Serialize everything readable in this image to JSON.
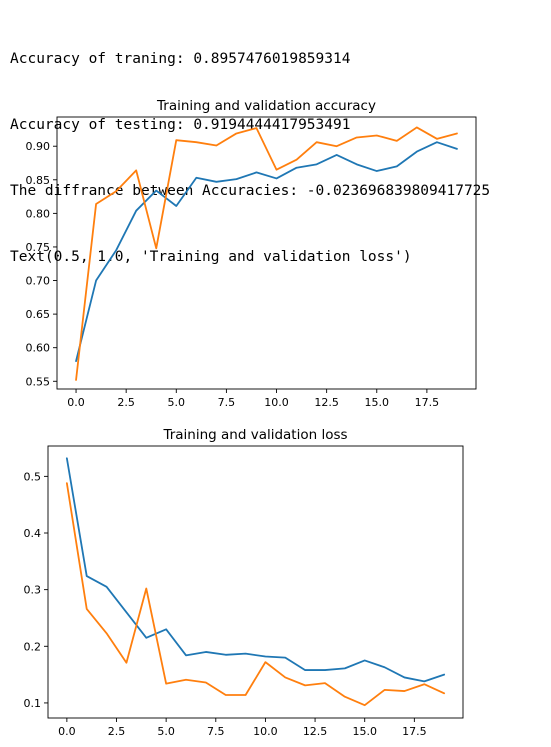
{
  "output_lines": [
    "Accuracy of traning: 0.8957476019859314",
    "Accuracy of testing: 0.9194444417953491",
    "The diffrance between Accuracies: -0.023696839809417725",
    "Text(0.5, 1.0, 'Training and validation loss')"
  ],
  "chart_data": [
    {
      "type": "line",
      "title": "Training and validation accuracy",
      "xlabel": "",
      "ylabel": "",
      "xlim": [
        -0.95,
        19.95
      ],
      "ylim": [
        0.5385,
        0.9435
      ],
      "xticks": [
        0.0,
        2.5,
        5.0,
        7.5,
        10.0,
        12.5,
        15.0,
        17.5
      ],
      "xtick_labels": [
        "0.0",
        "2.5",
        "5.0",
        "7.5",
        "10.0",
        "12.5",
        "15.0",
        "17.5"
      ],
      "yticks": [
        0.55,
        0.6,
        0.65,
        0.7,
        0.75,
        0.8,
        0.85,
        0.9
      ],
      "ytick_labels": [
        "0.55",
        "0.60",
        "0.65",
        "0.70",
        "0.75",
        "0.80",
        "0.85",
        "0.90"
      ],
      "grid": false,
      "legend": false,
      "x": [
        0,
        1,
        2,
        3,
        4,
        5,
        6,
        7,
        8,
        9,
        10,
        11,
        12,
        13,
        14,
        15,
        16,
        17,
        18,
        19
      ],
      "series": [
        {
          "color": "#1f77b4",
          "values": [
            0.58,
            0.7,
            0.745,
            0.804,
            0.834,
            0.811,
            0.853,
            0.847,
            0.851,
            0.861,
            0.852,
            0.868,
            0.873,
            0.887,
            0.873,
            0.863,
            0.87,
            0.892,
            0.906,
            0.896
          ]
        },
        {
          "color": "#ff7f0e",
          "values": [
            0.552,
            0.814,
            0.833,
            0.864,
            0.748,
            0.909,
            0.906,
            0.901,
            0.919,
            0.927,
            0.865,
            0.88,
            0.906,
            0.9,
            0.913,
            0.916,
            0.908,
            0.928,
            0.911,
            0.919
          ]
        }
      ]
    },
    {
      "type": "line",
      "title": "Training and validation loss",
      "xlabel": "",
      "ylabel": "",
      "xlim": [
        -0.95,
        19.95
      ],
      "ylim": [
        0.0734,
        0.5536
      ],
      "xticks": [
        0.0,
        2.5,
        5.0,
        7.5,
        10.0,
        12.5,
        15.0,
        17.5
      ],
      "xtick_labels": [
        "0.0",
        "2.5",
        "5.0",
        "7.5",
        "10.0",
        "12.5",
        "15.0",
        "17.5"
      ],
      "yticks": [
        0.1,
        0.2,
        0.3,
        0.4,
        0.5
      ],
      "ytick_labels": [
        "0.1",
        "0.2",
        "0.3",
        "0.4",
        "0.5"
      ],
      "grid": false,
      "legend": false,
      "x": [
        0,
        1,
        2,
        3,
        4,
        5,
        6,
        7,
        8,
        9,
        10,
        11,
        12,
        13,
        14,
        15,
        16,
        17,
        18,
        19
      ],
      "series": [
        {
          "color": "#1f77b4",
          "values": [
            0.532,
            0.324,
            0.305,
            0.26,
            0.215,
            0.23,
            0.184,
            0.19,
            0.185,
            0.187,
            0.182,
            0.18,
            0.158,
            0.158,
            0.161,
            0.175,
            0.163,
            0.145,
            0.138,
            0.15
          ]
        },
        {
          "color": "#ff7f0e",
          "values": [
            0.488,
            0.266,
            0.223,
            0.171,
            0.302,
            0.134,
            0.141,
            0.136,
            0.114,
            0.114,
            0.172,
            0.145,
            0.131,
            0.135,
            0.111,
            0.096,
            0.123,
            0.121,
            0.133,
            0.117
          ]
        }
      ]
    }
  ]
}
